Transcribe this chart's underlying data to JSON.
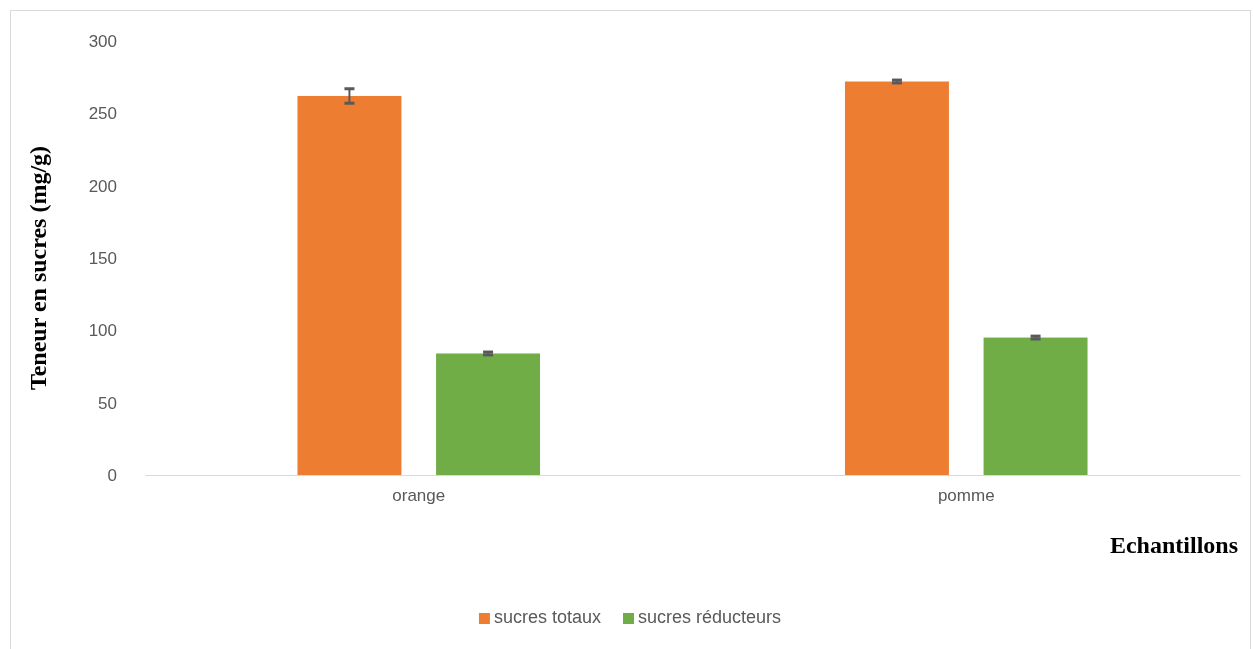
{
  "chart_data": {
    "type": "bar",
    "categories": [
      "orange",
      "pomme"
    ],
    "xlabel": "Echantillons",
    "ylabel": "Teneur en sucres (mg/g)",
    "series": [
      {
        "name": "sucres totaux",
        "color": "#ed7d31",
        "values": [
          262,
          272
        ],
        "errors": [
          5,
          1
        ]
      },
      {
        "name": "sucres réducteurs",
        "color": "#70ad47",
        "values": [
          84,
          95
        ],
        "errors": [
          1,
          1
        ]
      }
    ],
    "ylim": [
      0,
      300
    ],
    "yticks": [
      0,
      50,
      100,
      150,
      200,
      250,
      300
    ],
    "grid": false,
    "legend": "bottom"
  }
}
